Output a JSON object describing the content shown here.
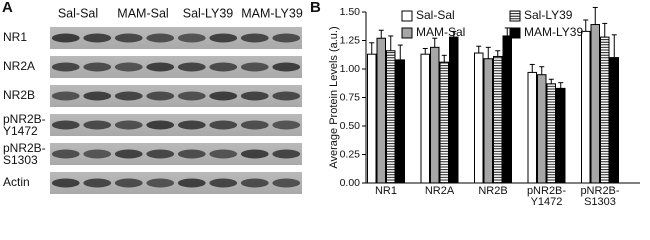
{
  "panel_a": {
    "label": "A",
    "column_headers": [
      "Sal-Sal",
      "MAM-Sal",
      "Sal-LY39",
      "MAM-LY39"
    ],
    "row_labels": [
      "NR1",
      "NR2A",
      "NR2B",
      "pNR2B-Y1472",
      "pNR2B-S1303",
      "Actin"
    ]
  },
  "chart_data": {
    "type": "bar",
    "panel_label": "B",
    "y_label": "Average Protein Levels (a.u.)",
    "categories": [
      "NR1",
      "NR2A",
      "NR2B",
      "pNR2B-Y1472",
      "pNR2B-S1303"
    ],
    "series": [
      {
        "name": "Sal-Sal",
        "color": "#ffffff",
        "values": [
          1.13,
          1.13,
          1.14,
          0.97,
          1.33
        ],
        "errors": [
          0.1,
          0.05,
          0.06,
          0.07,
          0.1
        ]
      },
      {
        "name": "MAM-Sal",
        "color": "#a6a6a6",
        "values": [
          1.27,
          1.19,
          1.09,
          0.95,
          1.39
        ],
        "errors": [
          0.07,
          0.08,
          0.1,
          0.07,
          0.15
        ]
      },
      {
        "name": "Sal-LY39",
        "color": "#ffffff",
        "pattern": "horizontal-lines",
        "values": [
          1.16,
          1.06,
          1.11,
          0.87,
          1.28
        ],
        "errors": [
          0.13,
          0.06,
          0.05,
          0.04,
          0.12
        ]
      },
      {
        "name": "MAM-LY39",
        "color": "#000000",
        "values": [
          1.08,
          1.28,
          1.29,
          0.83,
          1.1
        ],
        "errors": [
          0.13,
          0.05,
          0.07,
          0.05,
          0.2
        ]
      }
    ],
    "ylim": [
      0,
      1.5
    ],
    "yticks": [
      {
        "value": 0,
        "label": "0.00"
      },
      {
        "value": 0.25,
        "label": "0.25"
      },
      {
        "value": 0.5,
        "label": "0.50"
      },
      {
        "value": 0.75,
        "label": "0.75"
      },
      {
        "value": 1,
        "label": "1.00"
      },
      {
        "value": 1.25,
        "label": "1.25"
      },
      {
        "value": 1.5,
        "label": "1.50"
      }
    ],
    "grid": false,
    "legend": "top"
  }
}
